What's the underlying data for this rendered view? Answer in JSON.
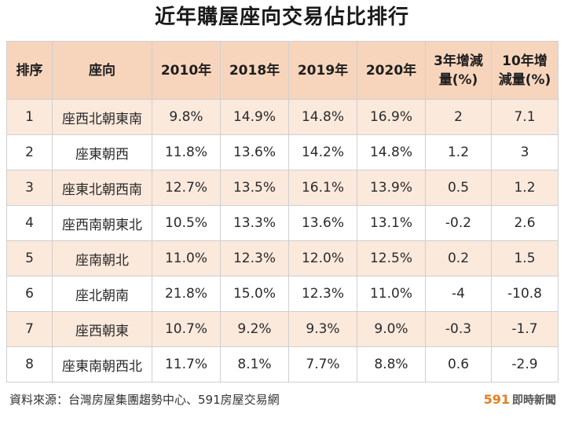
{
  "title": "近年購屋座向交易佔比排行",
  "table": {
    "headers": [
      {
        "lines": [
          "排序"
        ]
      },
      {
        "lines": [
          "座向"
        ]
      },
      {
        "lines": [
          "2010年"
        ]
      },
      {
        "lines": [
          "2018年"
        ]
      },
      {
        "lines": [
          "2019年"
        ]
      },
      {
        "lines": [
          "2020年"
        ]
      },
      {
        "lines": [
          "3年增減",
          "量(%)"
        ]
      },
      {
        "lines": [
          "10年增",
          "減量(%)"
        ]
      }
    ],
    "rows": [
      [
        "1",
        "座西北朝東南",
        "9.8%",
        "14.9%",
        "14.8%",
        "16.9%",
        "2",
        "7.1"
      ],
      [
        "2",
        "座東朝西",
        "11.8%",
        "13.6%",
        "14.2%",
        "14.8%",
        "1.2",
        "3"
      ],
      [
        "3",
        "座東北朝西南",
        "12.7%",
        "13.5%",
        "16.1%",
        "13.9%",
        "0.5",
        "1.2"
      ],
      [
        "4",
        "座西南朝東北",
        "10.5%",
        "13.3%",
        "13.6%",
        "13.1%",
        "-0.2",
        "2.6"
      ],
      [
        "5",
        "座南朝北",
        "11.0%",
        "12.3%",
        "12.0%",
        "12.5%",
        "0.2",
        "1.5"
      ],
      [
        "6",
        "座北朝南",
        "21.8%",
        "15.0%",
        "12.3%",
        "11.0%",
        "-4",
        "-10.8"
      ],
      [
        "7",
        "座西朝東",
        "10.7%",
        "9.2%",
        "9.3%",
        "9.0%",
        "-0.3",
        "-1.7"
      ],
      [
        "8",
        "座東南朝西北",
        "11.7%",
        "8.1%",
        "7.7%",
        "8.8%",
        "0.6",
        "-2.9"
      ]
    ]
  },
  "footer": {
    "source": "資料來源：台灣房屋集團趨勢中心、591房屋交易網",
    "logo_number": "591",
    "logo_text": "即時新聞"
  },
  "colors": {
    "header_bg": "#f7d5bd",
    "odd_row_bg": "#fbe9dc",
    "even_row_bg": "#ffffff",
    "logo_accent": "#e3801e"
  }
}
